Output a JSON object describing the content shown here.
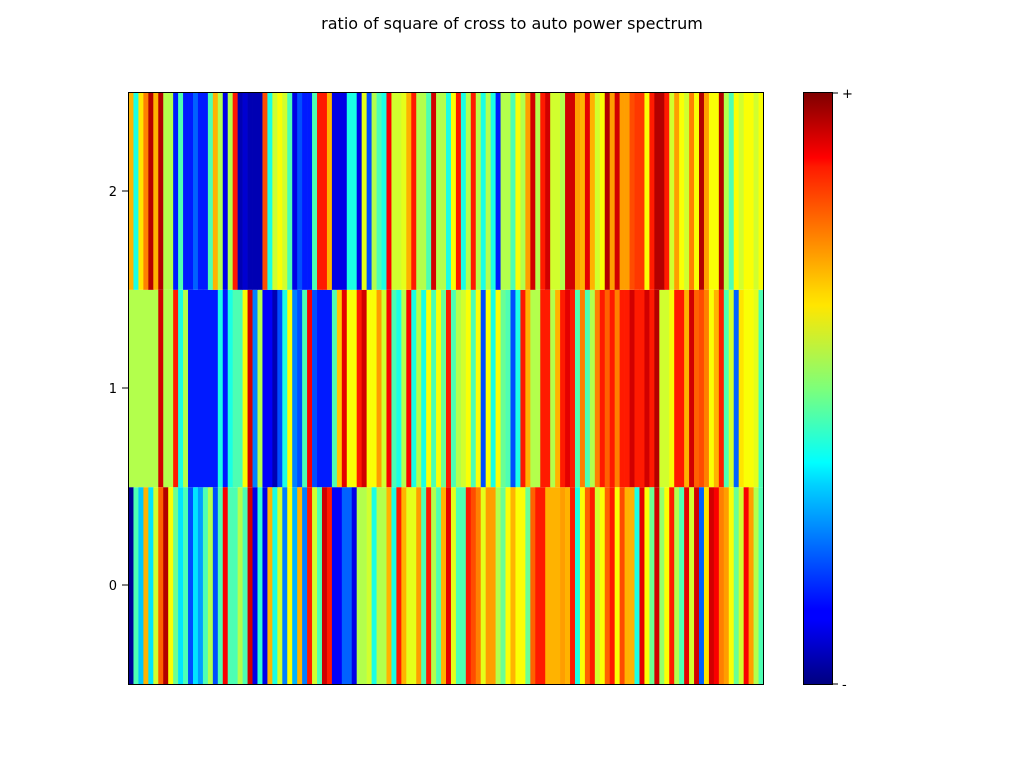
{
  "chart_data": {
    "type": "heatmap",
    "title": "ratio of square of cross to auto power spectrum",
    "xlabel": "",
    "ylabel": "",
    "rows": [
      0,
      1,
      2
    ],
    "ytick_labels": [
      "0",
      "1",
      "2"
    ],
    "ylim": [
      -0.5,
      2.5
    ],
    "xlim": [
      0,
      128
    ],
    "grid": false,
    "colormap": "jet",
    "value_range": [
      0,
      1
    ],
    "colorbar": {
      "max_label": "+",
      "min_label": "-",
      "placement": "right"
    },
    "values": [
      [
        0.02,
        0.45,
        0.32,
        0.7,
        0.35,
        0.58,
        0.78,
        0.95,
        0.62,
        0.48,
        0.35,
        0.45,
        0.2,
        0.35,
        0.28,
        0.45,
        0.55,
        0.2,
        0.45,
        0.88,
        0.45,
        0.45,
        0.55,
        0.45,
        0.92,
        0.1,
        0.42,
        0.1,
        0.7,
        0.4,
        0.58,
        0.25,
        0.62,
        0.3,
        0.7,
        0.25,
        0.85,
        0.58,
        0.45,
        0.92,
        0.85,
        0.12,
        0.12,
        0.22,
        0.22,
        0.1,
        0.55,
        0.55,
        0.58,
        0.4,
        0.55,
        0.55,
        0.7,
        0.4,
        0.85,
        0.7,
        0.6,
        0.6,
        0.72,
        0.45,
        0.85,
        0.55,
        0.45,
        0.7,
        0.9,
        0.6,
        0.45,
        0.45,
        0.85,
        0.8,
        0.75,
        0.6,
        0.72,
        0.72,
        0.55,
        0.48,
        0.62,
        0.7,
        0.62,
        0.62,
        0.48,
        0.78,
        0.85,
        0.85,
        0.7,
        0.7,
        0.7,
        0.72,
        0.7,
        0.85,
        0.4,
        0.62,
        0.78,
        0.85,
        0.58,
        0.62,
        0.78,
        0.85,
        0.62,
        0.8,
        0.7,
        0.7,
        0.4,
        0.9,
        0.62,
        0.48,
        0.92,
        0.52,
        0.62,
        0.85,
        0.55,
        0.45,
        0.9,
        0.58,
        0.92,
        0.22,
        0.65,
        0.92,
        0.88,
        0.75,
        0.72,
        0.62,
        0.48,
        0.58,
        0.88,
        0.72,
        0.55,
        0.45
      ],
      [
        0.55,
        0.55,
        0.55,
        0.55,
        0.55,
        0.55,
        0.92,
        0.55,
        0.55,
        0.85,
        0.4,
        0.55,
        0.15,
        0.15,
        0.15,
        0.15,
        0.15,
        0.15,
        0.4,
        0.15,
        0.4,
        0.45,
        0.45,
        0.62,
        0.92,
        0.25,
        0.55,
        0.12,
        0.12,
        0.05,
        0.2,
        0.4,
        0.62,
        0.25,
        0.2,
        0.45,
        0.88,
        0.2,
        0.15,
        0.15,
        0.15,
        0.45,
        0.68,
        0.9,
        0.62,
        0.62,
        0.85,
        0.92,
        0.62,
        0.62,
        0.72,
        0.58,
        0.88,
        0.45,
        0.4,
        0.55,
        0.88,
        0.4,
        0.55,
        0.4,
        0.62,
        0.45,
        0.62,
        0.48,
        0.85,
        0.45,
        0.55,
        0.58,
        0.62,
        0.45,
        0.62,
        0.2,
        0.62,
        0.4,
        0.62,
        0.48,
        0.45,
        0.2,
        0.4,
        0.85,
        0.7,
        0.55,
        0.55,
        0.85,
        0.85,
        0.55,
        0.7,
        0.85,
        0.9,
        0.85,
        0.45,
        0.75,
        0.45,
        0.55,
        0.75,
        0.85,
        0.78,
        0.85,
        0.75,
        0.85,
        0.85,
        0.92,
        0.85,
        0.85,
        0.92,
        0.85,
        0.95,
        0.58,
        0.58,
        0.62,
        0.85,
        0.85,
        0.7,
        0.92,
        0.78,
        0.8,
        0.75,
        0.62,
        0.7,
        0.85,
        0.45,
        0.58,
        0.22,
        0.65,
        0.62,
        0.62,
        0.6,
        0.45
      ],
      [
        0.7,
        0.4,
        0.65,
        0.75,
        0.95,
        0.7,
        0.95,
        0.55,
        0.55,
        0.15,
        0.45,
        0.15,
        0.15,
        0.22,
        0.15,
        0.15,
        0.45,
        0.7,
        0.55,
        0.1,
        0.55,
        0.85,
        0.05,
        0.08,
        0.05,
        0.05,
        0.05,
        0.8,
        0.4,
        0.58,
        0.62,
        0.58,
        0.45,
        0.1,
        0.2,
        0.15,
        0.15,
        0.45,
        0.85,
        0.85,
        0.7,
        0.1,
        0.1,
        0.1,
        0.4,
        0.4,
        0.1,
        0.6,
        0.2,
        0.55,
        0.45,
        0.4,
        0.88,
        0.58,
        0.58,
        0.6,
        0.7,
        0.85,
        0.55,
        0.55,
        0.45,
        0.92,
        0.55,
        0.55,
        0.4,
        0.62,
        0.85,
        0.4,
        0.55,
        0.85,
        0.55,
        0.4,
        0.55,
        0.4,
        0.15,
        0.55,
        0.55,
        0.45,
        0.62,
        0.55,
        0.72,
        0.92,
        0.55,
        0.85,
        0.92,
        0.58,
        0.58,
        0.55,
        0.92,
        0.92,
        0.72,
        0.7,
        0.9,
        0.7,
        0.58,
        0.62,
        0.95,
        0.72,
        0.92,
        0.72,
        0.72,
        0.8,
        0.82,
        0.82,
        0.62,
        0.85,
        0.95,
        0.95,
        0.85,
        0.58,
        0.72,
        0.62,
        0.58,
        0.75,
        0.62,
        0.95,
        0.72,
        0.62,
        0.62,
        0.95,
        0.55,
        0.45,
        0.62,
        0.58,
        0.62,
        0.62,
        0.58,
        0.62
      ]
    ]
  }
}
